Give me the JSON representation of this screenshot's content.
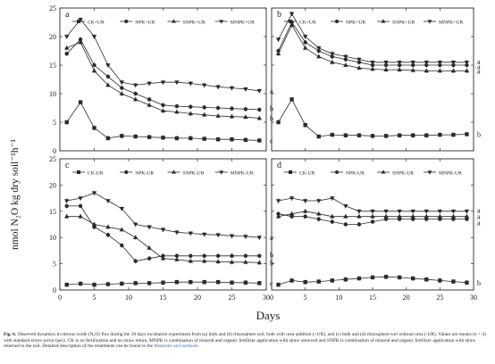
{
  "figure": {
    "ylabel": "nmol N₂O kg dry soil⁻¹h⁻¹",
    "xlabel": "Days"
  },
  "caption": {
    "lead": "Fig. 6.",
    "text": " Observed dynamics in nitrous oxide (N₂O) flux during the 30 days incubation experiment from (a) bulk and (b) rhizosphere soil, both with urea addition (+UR), and (c) bulk and (d) rhizosphere soil without urea (-UR). Values are means (n = 4) with standard errors (error bars). CK is no fertilization and no straw return, MNPK is combination of mineral and organic fertilizer application with straw removed and SNPK is combination of mineral and organic fertilizer application with straw returned to the soil. Detailed description of the treatments can be found in the ",
    "link": "Materials and methods",
    "end": "."
  },
  "styles": {
    "line_color": "#2b2b2b",
    "markers": [
      "square",
      "circle",
      "triangle-up",
      "triangle-down"
    ]
  },
  "chart_data": [
    {
      "panel": "a",
      "type": "line",
      "xlim": [
        0,
        30
      ],
      "ylim": [
        0,
        25
      ],
      "xticks": [
        0,
        5,
        10,
        15,
        20,
        25,
        30
      ],
      "yticks": [
        0,
        5,
        10,
        15,
        20,
        25
      ],
      "x": [
        1,
        3,
        5,
        7,
        9,
        11,
        13,
        15,
        17,
        19,
        21,
        23,
        25,
        27,
        29
      ],
      "series": [
        {
          "name": "CK+UR",
          "marker": "square",
          "values": [
            5.0,
            8.5,
            4.0,
            2.2,
            2.6,
            2.5,
            2.4,
            2.3,
            2.2,
            2.2,
            2.1,
            2.0,
            2.0,
            1.9,
            1.8
          ]
        },
        {
          "name": "NPK+UR",
          "marker": "circle",
          "values": [
            17.0,
            19.5,
            15.0,
            13.0,
            11.0,
            10.0,
            9.0,
            8.0,
            7.8,
            7.7,
            7.6,
            7.5,
            7.4,
            7.3,
            7.2
          ]
        },
        {
          "name": "SNPK+UR",
          "marker": "triangle-up",
          "values": [
            18.0,
            19.0,
            14.0,
            11.5,
            10.0,
            9.0,
            8.0,
            7.0,
            6.8,
            6.5,
            6.3,
            6.1,
            6.0,
            5.9,
            5.7
          ]
        },
        {
          "name": "MNPK+UR",
          "marker": "triangle-down",
          "values": [
            20.0,
            23.0,
            20.0,
            15.0,
            12.0,
            11.5,
            11.8,
            12.0,
            12.0,
            11.8,
            11.5,
            11.2,
            11.0,
            10.8,
            10.5
          ]
        }
      ],
      "end_labels": [
        {
          "text": "a",
          "y": 10.5
        },
        {
          "text": "b",
          "y": 7.4
        },
        {
          "text": "b",
          "y": 5.7
        },
        {
          "text": "c",
          "y": 1.8
        }
      ]
    },
    {
      "panel": "b",
      "type": "line",
      "xlim": [
        0,
        30
      ],
      "ylim": [
        0,
        25
      ],
      "xticks": [
        0,
        5,
        10,
        15,
        20,
        25,
        30
      ],
      "yticks": [
        0,
        5,
        10,
        15,
        20,
        25
      ],
      "x": [
        1,
        3,
        5,
        7,
        9,
        11,
        13,
        15,
        17,
        19,
        21,
        23,
        25,
        27,
        29
      ],
      "series": [
        {
          "name": "CK+UR",
          "marker": "square",
          "values": [
            5.0,
            9.0,
            4.5,
            2.5,
            2.8,
            2.7,
            2.7,
            2.6,
            2.6,
            2.7,
            2.7,
            2.7,
            2.8,
            2.8,
            2.9
          ]
        },
        {
          "name": "NPK+UR",
          "marker": "circle",
          "values": [
            17.5,
            22.5,
            19.0,
            17.5,
            16.5,
            16.0,
            15.5,
            15.0,
            15.0,
            15.0,
            15.0,
            15.0,
            15.0,
            15.0,
            15.0
          ]
        },
        {
          "name": "SNPK+UR",
          "marker": "triangle-up",
          "values": [
            17.0,
            22.0,
            18.0,
            16.5,
            15.5,
            15.0,
            14.5,
            14.3,
            14.2,
            14.2,
            14.1,
            14.0,
            14.0,
            14.0,
            14.0
          ]
        },
        {
          "name": "MNPK+UR",
          "marker": "triangle-down",
          "values": [
            19.5,
            24.0,
            20.0,
            18.0,
            17.0,
            16.5,
            16.0,
            15.5,
            15.5,
            15.5,
            15.5,
            15.5,
            15.5,
            15.5,
            15.5
          ]
        }
      ],
      "end_labels": [
        {
          "text": "a",
          "y": 15.6
        },
        {
          "text": "a",
          "y": 14.8
        },
        {
          "text": "a",
          "y": 14.0
        },
        {
          "text": "b",
          "y": 2.9
        }
      ]
    },
    {
      "panel": "c",
      "type": "line",
      "xlim": [
        0,
        30
      ],
      "ylim": [
        0,
        25
      ],
      "xticks": [
        0,
        5,
        10,
        15,
        20,
        25,
        30
      ],
      "yticks": [
        0,
        5,
        10,
        15,
        20,
        25
      ],
      "x": [
        1,
        3,
        5,
        7,
        9,
        11,
        13,
        15,
        17,
        19,
        21,
        23,
        25,
        27,
        29
      ],
      "series": [
        {
          "name": "CK-UR",
          "marker": "square",
          "values": [
            1.0,
            1.2,
            1.0,
            1.1,
            1.2,
            1.3,
            1.3,
            1.4,
            1.5,
            1.5,
            1.5,
            1.5,
            1.4,
            1.4,
            1.3
          ]
        },
        {
          "name": "NPK-UR",
          "marker": "circle",
          "values": [
            16.0,
            16.0,
            12.0,
            10.5,
            8.5,
            5.5,
            6.0,
            6.5,
            6.5,
            6.5,
            6.5,
            6.5,
            6.5,
            6.5,
            6.5
          ]
        },
        {
          "name": "SNPK-UR",
          "marker": "triangle-up",
          "values": [
            14.0,
            14.0,
            12.5,
            12.0,
            11.5,
            10.0,
            8.0,
            6.0,
            5.8,
            5.5,
            5.5,
            5.4,
            5.3,
            5.3,
            5.2
          ]
        },
        {
          "name": "MNPK-UR",
          "marker": "triangle-down",
          "values": [
            17.0,
            17.5,
            18.5,
            17.0,
            15.5,
            12.5,
            12.0,
            11.5,
            11.0,
            10.8,
            10.6,
            10.5,
            10.3,
            10.2,
            10.0
          ]
        }
      ],
      "end_labels": [
        {
          "text": "a",
          "y": 10.0
        },
        {
          "text": "b",
          "y": 6.7
        },
        {
          "text": "b",
          "y": 5.2
        },
        {
          "text": "c",
          "y": 1.3
        }
      ]
    },
    {
      "panel": "d",
      "type": "line",
      "xlim": [
        0,
        30
      ],
      "ylim": [
        0,
        25
      ],
      "xticks": [
        0,
        5,
        10,
        15,
        20,
        25,
        30
      ],
      "yticks": [
        0,
        5,
        10,
        15,
        20,
        25
      ],
      "x": [
        1,
        3,
        5,
        7,
        9,
        11,
        13,
        15,
        17,
        19,
        21,
        23,
        25,
        27,
        29
      ],
      "series": [
        {
          "name": "CK-UR",
          "marker": "square",
          "values": [
            1.0,
            1.8,
            1.5,
            1.6,
            1.8,
            2.0,
            2.2,
            2.4,
            2.5,
            2.4,
            2.2,
            2.0,
            1.8,
            1.6,
            1.4
          ]
        },
        {
          "name": "NPK-UR",
          "marker": "circle",
          "values": [
            14.5,
            14.0,
            14.0,
            13.5,
            13.0,
            12.5,
            12.5,
            13.0,
            13.5,
            13.5,
            13.5,
            13.5,
            13.5,
            13.5,
            13.5
          ]
        },
        {
          "name": "SNPK-UR",
          "marker": "triangle-up",
          "values": [
            14.0,
            14.5,
            15.0,
            14.5,
            14.0,
            14.0,
            14.0,
            14.0,
            14.0,
            14.0,
            14.0,
            14.0,
            14.0,
            14.0,
            14.0
          ]
        },
        {
          "name": "MNPK-UR",
          "marker": "triangle-down",
          "values": [
            17.0,
            17.5,
            17.0,
            17.0,
            17.5,
            16.0,
            15.0,
            15.0,
            15.0,
            15.0,
            15.0,
            15.0,
            15.0,
            15.0,
            15.0
          ]
        }
      ],
      "end_labels": [
        {
          "text": "a",
          "y": 15.2
        },
        {
          "text": "a",
          "y": 14.0
        },
        {
          "text": "a",
          "y": 12.8
        },
        {
          "text": "b",
          "y": 1.4
        }
      ]
    }
  ]
}
